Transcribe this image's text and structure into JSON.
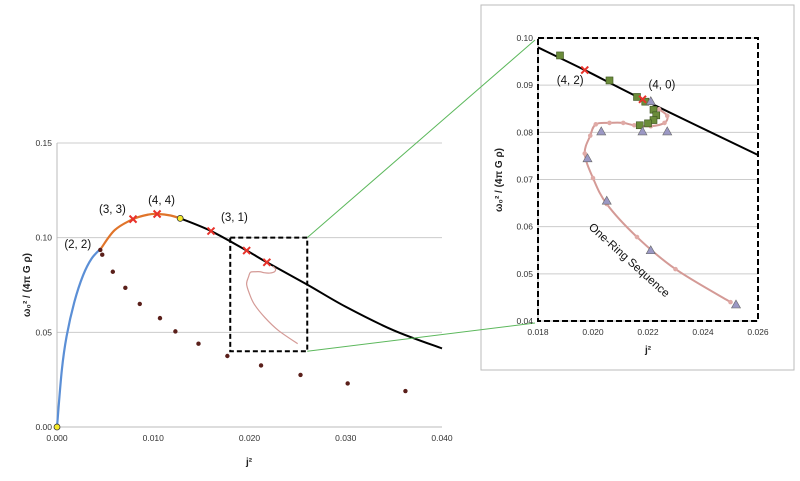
{
  "chart_data": [
    {
      "type": "line",
      "xlabel": "j²",
      "ylabel": "ω₀² / (4π G ρ)",
      "xlim": [
        0,
        0.04
      ],
      "ylim": [
        0,
        0.15
      ],
      "xticks": [
        "0.000",
        "0.010",
        "0.020",
        "0.030",
        "0.040"
      ],
      "yticks": [
        "0.00",
        "0.05",
        "0.10",
        "0.15"
      ],
      "grid": "horizontal",
      "series": [
        {
          "style": "blue-line",
          "color": "#5b8fd6",
          "x": [
            0,
            0.0005,
            0.001,
            0.0018,
            0.0027,
            0.0036,
            0.0046
          ],
          "y": [
            0,
            0.03,
            0.048,
            0.066,
            0.08,
            0.089,
            0.0945
          ]
        },
        {
          "style": "orange-line",
          "color": "#e0742a",
          "x": [
            0.0046,
            0.006,
            0.0079,
            0.0095,
            0.0105,
            0.0118,
            0.0128
          ],
          "y": [
            0.0945,
            0.104,
            0.1098,
            0.1122,
            0.1125,
            0.1117,
            0.1102
          ]
        },
        {
          "style": "black-line",
          "color": "#000000",
          "x": [
            0.0128,
            0.016,
            0.0197,
            0.0218,
            0.026,
            0.03,
            0.035,
            0.04
          ],
          "y": [
            0.1102,
            0.1035,
            0.0932,
            0.087,
            0.0752,
            0.0635,
            0.051,
            0.0415
          ]
        },
        {
          "style": "red-x",
          "color": "#e8322a",
          "x": [
            0.0079,
            0.0104,
            0.016,
            0.0197,
            0.0218
          ],
          "y": [
            0.1098,
            0.1125,
            0.1035,
            0.0932,
            0.087
          ]
        },
        {
          "style": "yellow-circle",
          "color": "#f5ea2a",
          "x": [
            0,
            0.0128
          ],
          "y": [
            0,
            0.1102
          ]
        },
        {
          "style": "dark-dot",
          "color": "#5a1f1a",
          "x": [
            0.0045,
            0.0047,
            0.0058,
            0.0071,
            0.0086,
            0.0107,
            0.0123,
            0.0147,
            0.0177,
            0.0212,
            0.0253,
            0.0302,
            0.0362
          ],
          "y": [
            0.0935,
            0.091,
            0.082,
            0.0735,
            0.065,
            0.0575,
            0.0505,
            0.044,
            0.0375,
            0.0325,
            0.0275,
            0.023,
            0.019
          ]
        },
        {
          "style": "pink-line",
          "color": "#d49a96",
          "x": [
            0.0224,
            0.0227,
            0.0226,
            0.0221,
            0.0215,
            0.0211,
            0.0206,
            0.0201,
            0.0199,
            0.0197,
            0.02,
            0.0205,
            0.0216,
            0.023,
            0.025
          ],
          "y": [
            0.0849,
            0.0835,
            0.082,
            0.0813,
            0.0815,
            0.082,
            0.082,
            0.0817,
            0.0793,
            0.0755,
            0.0703,
            0.0648,
            0.0578,
            0.051,
            0.044
          ]
        }
      ],
      "annotations": [
        {
          "text": "(2, 2)",
          "x": 0.0045,
          "y": 0.0935
        },
        {
          "text": "(3, 3)",
          "x": 0.0079,
          "y": 0.1098
        },
        {
          "text": "(4, 4)",
          "x": 0.0104,
          "y": 0.1125
        },
        {
          "text": "(3, 1)",
          "x": 0.016,
          "y": 0.1035
        }
      ],
      "zoom_box": {
        "x": [
          0.018,
          0.026
        ],
        "y": [
          0.04,
          0.1
        ]
      }
    },
    {
      "type": "line",
      "xlabel": "j²",
      "ylabel": "ω₀² / (4π G ρ)",
      "xlim": [
        0.018,
        0.026
      ],
      "ylim": [
        0.04,
        0.1
      ],
      "xticks": [
        "0.018",
        "0.020",
        "0.022",
        "0.024",
        "0.026"
      ],
      "yticks": [
        "0.04",
        "0.05",
        "0.06",
        "0.07",
        "0.08",
        "0.09",
        "0.10"
      ],
      "grid": "horizontal",
      "series": [
        {
          "style": "black-line",
          "color": "#000000",
          "x": [
            0.018,
            0.0197,
            0.0218,
            0.026
          ],
          "y": [
            0.098,
            0.0932,
            0.087,
            0.0752
          ]
        },
        {
          "style": "pink-line",
          "color": "#d49a96",
          "x": [
            0.0224,
            0.0227,
            0.0226,
            0.0221,
            0.0215,
            0.0211,
            0.0206,
            0.0201,
            0.0199,
            0.0197,
            0.02,
            0.0205,
            0.0216,
            0.023,
            0.025
          ],
          "y": [
            0.0849,
            0.0835,
            0.082,
            0.0813,
            0.0815,
            0.082,
            0.082,
            0.0817,
            0.0793,
            0.0755,
            0.0703,
            0.0648,
            0.0578,
            0.051,
            0.044
          ]
        },
        {
          "style": "green-square",
          "color": "#6b8c3a",
          "x": [
            0.0188,
            0.0206,
            0.0216,
            0.0219,
            0.0222,
            0.0223,
            0.0222,
            0.022,
            0.0217
          ],
          "y": [
            0.0963,
            0.091,
            0.0875,
            0.0865,
            0.0848,
            0.0836,
            0.0826,
            0.0819,
            0.0815
          ]
        },
        {
          "style": "purple-triangle",
          "color": "#9b98c4",
          "x": [
            0.0221,
            0.0203,
            0.0218,
            0.0227,
            0.0198,
            0.0205,
            0.0221,
            0.0252
          ],
          "y": [
            0.0866,
            0.0802,
            0.0802,
            0.0802,
            0.0745,
            0.0655,
            0.055,
            0.0435
          ]
        },
        {
          "style": "red-x",
          "color": "#e8322a",
          "x": [
            0.0197,
            0.0218
          ],
          "y": [
            0.0932,
            0.087
          ]
        }
      ],
      "annotations": [
        {
          "text": "(4, 2)",
          "x": 0.0197,
          "y": 0.0932
        },
        {
          "text": "(4, 0)",
          "x": 0.0218,
          "y": 0.087
        },
        {
          "text": "One-Ring Sequence"
        }
      ]
    }
  ]
}
